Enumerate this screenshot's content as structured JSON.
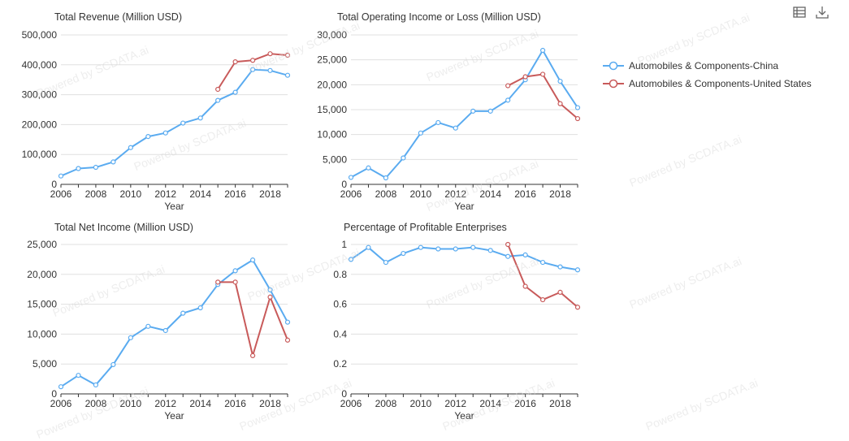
{
  "toolbar": {
    "table_icon": "data-table-icon",
    "download_icon": "download-icon"
  },
  "watermark": "Powered by SCDATA.ai",
  "colors": {
    "china": "#5aabf0",
    "us": "#c85a5a",
    "grid": "#e0e0e0",
    "axis": "#333333",
    "text": "#333333"
  },
  "legend": [
    {
      "label": "Automobiles & Components-China",
      "color": "#5aabf0"
    },
    {
      "label": "Automobiles & Components-United States",
      "color": "#c85a5a"
    }
  ],
  "chart_data": [
    {
      "type": "line",
      "title": "Total Revenue (Million USD)",
      "xlabel": "Year",
      "ylabel": "",
      "xlim": [
        2006,
        2019
      ],
      "xticks": [
        2006,
        2008,
        2010,
        2012,
        2014,
        2016,
        2018
      ],
      "ylim": [
        0,
        500000
      ],
      "yticks": [
        0,
        100000,
        200000,
        300000,
        400000,
        500000
      ],
      "ytick_labels": [
        "0",
        "100,000",
        "200,000",
        "300,000",
        "400,000",
        "500,000"
      ],
      "series": [
        {
          "name": "Automobiles & Components-China",
          "x": [
            2006,
            2007,
            2008,
            2009,
            2010,
            2011,
            2012,
            2013,
            2014,
            2015,
            2016,
            2017,
            2018,
            2019
          ],
          "values": [
            28000,
            53000,
            57000,
            75000,
            123000,
            160000,
            172000,
            205000,
            222000,
            281000,
            308000,
            384000,
            381000,
            365000
          ]
        },
        {
          "name": "Automobiles & Components-United States",
          "x": [
            2015,
            2016,
            2017,
            2018,
            2019
          ],
          "values": [
            318000,
            410000,
            415000,
            437000,
            432000
          ]
        }
      ]
    },
    {
      "type": "line",
      "title": "Total Operating Income or Loss (Million USD)",
      "xlabel": "Year",
      "ylabel": "",
      "xlim": [
        2006,
        2019
      ],
      "xticks": [
        2006,
        2008,
        2010,
        2012,
        2014,
        2016,
        2018
      ],
      "ylim": [
        0,
        30000
      ],
      "yticks": [
        0,
        5000,
        10000,
        15000,
        20000,
        25000,
        30000
      ],
      "ytick_labels": [
        "0",
        "5,000",
        "10,000",
        "15,000",
        "20,000",
        "25,000",
        "30,000"
      ],
      "series": [
        {
          "name": "Automobiles & Components-China",
          "x": [
            2006,
            2007,
            2008,
            2009,
            2010,
            2011,
            2012,
            2013,
            2014,
            2015,
            2016,
            2017,
            2018,
            2019
          ],
          "values": [
            1400,
            3300,
            1300,
            5300,
            10300,
            12400,
            11300,
            14700,
            14700,
            16900,
            21000,
            26900,
            20700,
            15400
          ]
        },
        {
          "name": "Automobiles & Components-United States",
          "x": [
            2015,
            2016,
            2017,
            2018,
            2019
          ],
          "values": [
            19800,
            21600,
            22100,
            16200,
            13200
          ]
        }
      ]
    },
    {
      "type": "line",
      "title": "Total Net Income (Million USD)",
      "xlabel": "Year",
      "ylabel": "",
      "xlim": [
        2006,
        2019
      ],
      "xticks": [
        2006,
        2008,
        2010,
        2012,
        2014,
        2016,
        2018
      ],
      "ylim": [
        0,
        25000
      ],
      "yticks": [
        0,
        5000,
        10000,
        15000,
        20000,
        25000
      ],
      "ytick_labels": [
        "0",
        "5,000",
        "10,000",
        "15,000",
        "20,000",
        "25,000"
      ],
      "series": [
        {
          "name": "Automobiles & Components-China",
          "x": [
            2006,
            2007,
            2008,
            2009,
            2010,
            2011,
            2012,
            2013,
            2014,
            2015,
            2016,
            2017,
            2018,
            2019
          ],
          "values": [
            1200,
            3100,
            1500,
            4900,
            9400,
            11300,
            10600,
            13500,
            14400,
            18300,
            20600,
            22400,
            17400,
            12000
          ]
        },
        {
          "name": "Automobiles & Components-United States",
          "x": [
            2015,
            2016,
            2017,
            2018,
            2019
          ],
          "values": [
            18700,
            18700,
            6400,
            16200,
            9000
          ]
        }
      ]
    },
    {
      "type": "line",
      "title": "Percentage of Profitable Enterprises",
      "xlabel": "Year",
      "ylabel": "",
      "xlim": [
        2006,
        2019
      ],
      "xticks": [
        2006,
        2008,
        2010,
        2012,
        2014,
        2016,
        2018
      ],
      "ylim": [
        0,
        1
      ],
      "yticks": [
        0,
        0.2,
        0.4,
        0.6,
        0.8,
        1
      ],
      "ytick_labels": [
        "0",
        "0.2",
        "0.4",
        "0.6",
        "0.8",
        "1"
      ],
      "series": [
        {
          "name": "Automobiles & Components-China",
          "x": [
            2006,
            2007,
            2008,
            2009,
            2010,
            2011,
            2012,
            2013,
            2014,
            2015,
            2016,
            2017,
            2018,
            2019
          ],
          "values": [
            0.9,
            0.98,
            0.88,
            0.94,
            0.98,
            0.97,
            0.97,
            0.98,
            0.96,
            0.92,
            0.93,
            0.88,
            0.85,
            0.83
          ]
        },
        {
          "name": "Automobiles & Components-United States",
          "x": [
            2015,
            2016,
            2017,
            2018,
            2019
          ],
          "values": [
            1.0,
            0.72,
            0.63,
            0.68,
            0.58
          ]
        }
      ]
    }
  ]
}
